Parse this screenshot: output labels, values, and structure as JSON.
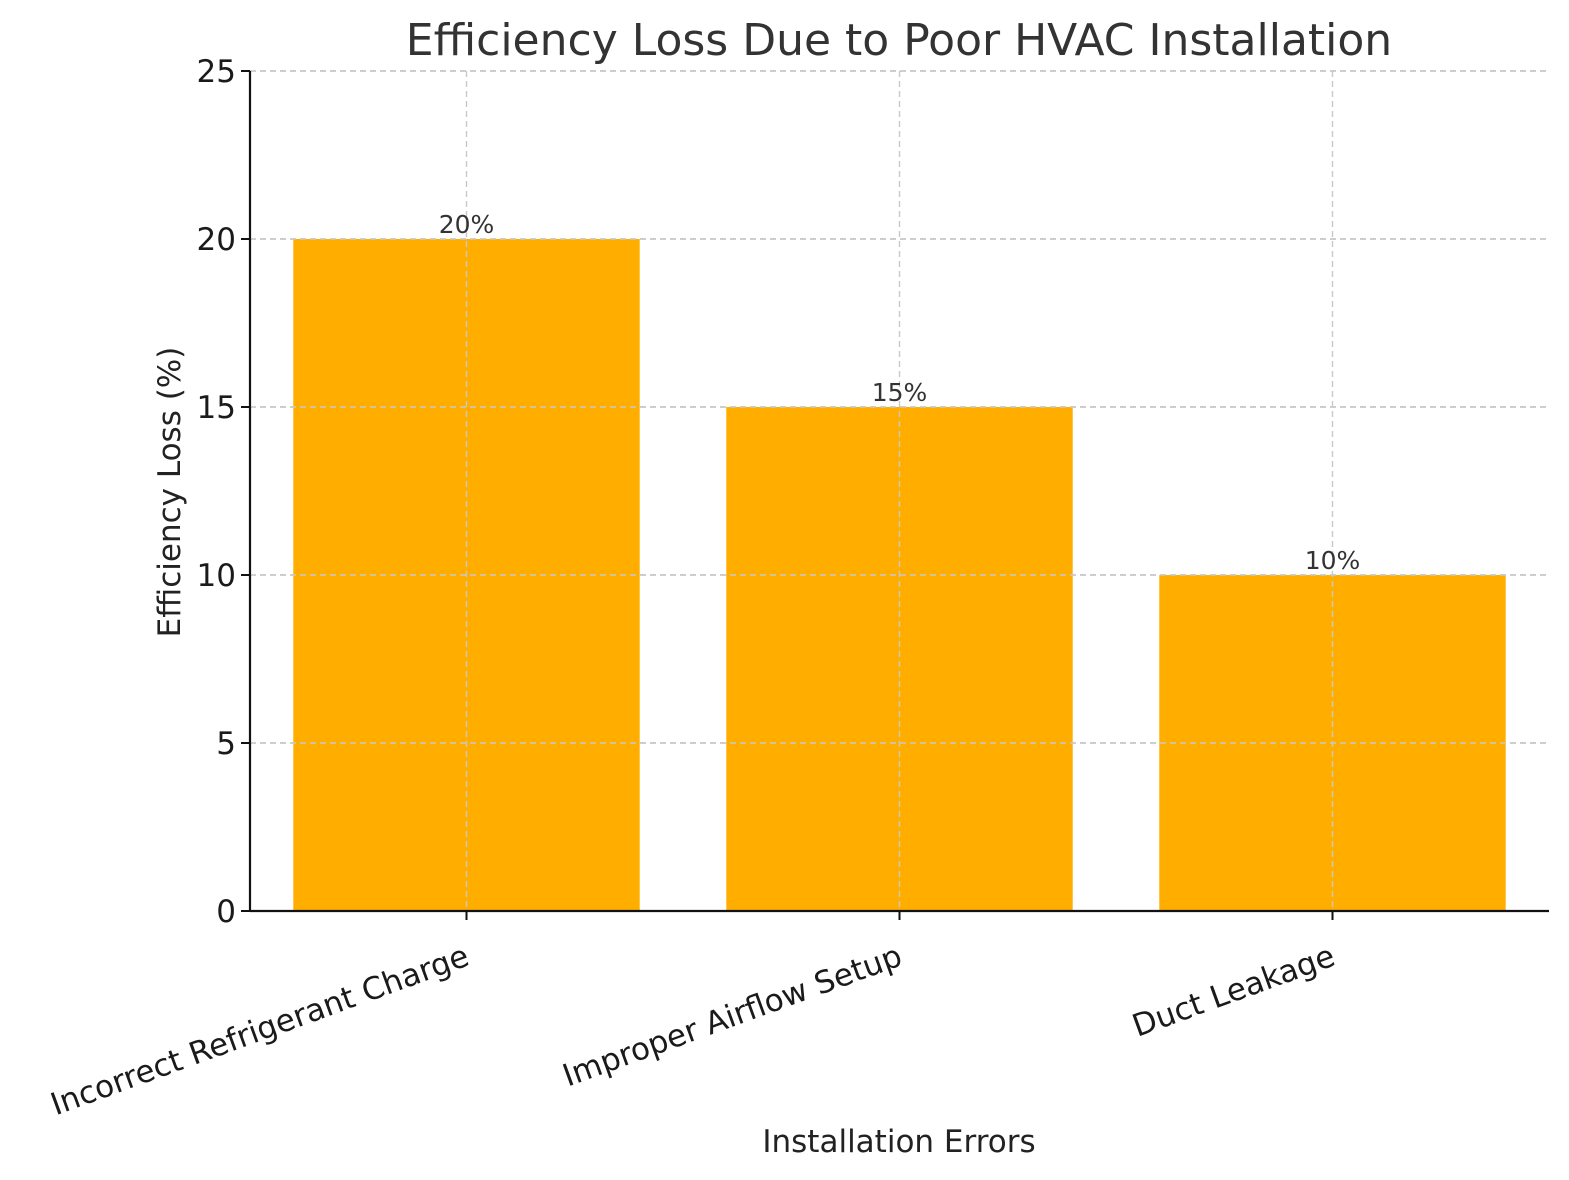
{
  "chart_data": {
    "type": "bar",
    "title": "Efficiency Loss Due to Poor HVAC Installation",
    "xlabel": "Installation Errors",
    "ylabel": "Efficiency Loss (%)",
    "categories": [
      "Incorrect Refrigerant Charge",
      "Improper Airflow Setup",
      "Duct Leakage"
    ],
    "values": [
      20,
      15,
      10
    ],
    "data_labels": [
      "20%",
      "15%",
      "10%"
    ],
    "ylim": [
      0,
      25
    ],
    "yticks": [
      0,
      5,
      10,
      15,
      20,
      25
    ],
    "grid": true,
    "legend": false,
    "colors": {
      "bar": "#FFAE00",
      "grid": "#c8c8c8",
      "axis": "#111111"
    }
  }
}
